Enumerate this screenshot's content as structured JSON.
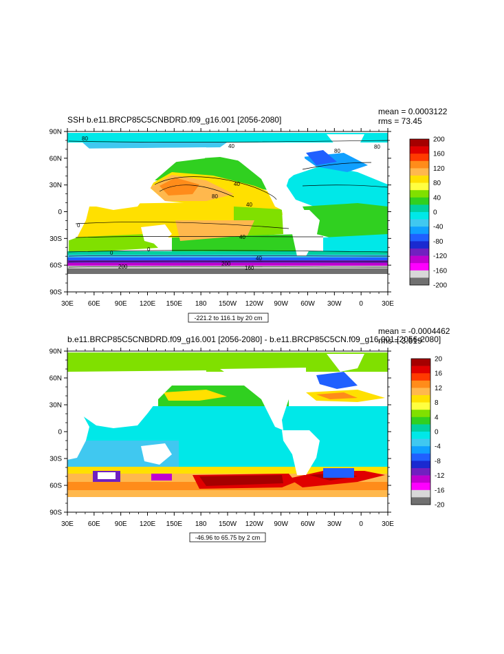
{
  "chart_data": [
    {
      "type": "heatmap",
      "title": "SSH b.e11.BRCP85C5CNBDRD.f09_g16.001 [2056-2080]",
      "stats": [
        "mean = 0.0003122",
        "rms = 73.45"
      ],
      "range_label": "-221.2 to 116.1 by 20 cm",
      "x_tick_labels": [
        "30E",
        "60E",
        "90E",
        "120E",
        "150E",
        "180",
        "150W",
        "120W",
        "90W",
        "60W",
        "30W",
        "0",
        "30E"
      ],
      "y_tick_labels": [
        "90N",
        "60N",
        "30N",
        "0",
        "30S",
        "60S",
        "90S"
      ],
      "colorbar": {
        "labels": [
          "200",
          "160",
          "120",
          "80",
          "40",
          "0",
          "-40",
          "-80",
          "-120",
          "-160",
          "-200"
        ],
        "colors": [
          "#a50000",
          "#e00000",
          "#ff3a00",
          "#ff8c1a",
          "#ffb84d",
          "#ffe000",
          "#ffff40",
          "#80e000",
          "#30d020",
          "#00d0a0",
          "#00e8e8",
          "#40c8f0",
          "#10a0ff",
          "#2060ff",
          "#1a2ad0",
          "#7020c0",
          "#c000d0",
          "#ff00ff",
          "#d8d8d8",
          "#707070"
        ]
      },
      "contour_labels": [
        "40",
        "80",
        "40",
        "40",
        "80",
        "0",
        "40",
        "0",
        "200",
        "200",
        "160",
        "40",
        "80",
        "80",
        "0"
      ],
      "grid": false
    },
    {
      "type": "heatmap",
      "title": "b.e11.BRCP85C5CNBDRD.f09_g16.001 [2056-2080] - b.e11.BRCP85C5CN.f09_g16.001 [2056-2080]",
      "stats": [
        "mean = -0.0004462",
        "rms = 3.619"
      ],
      "range_label": "-46.96 to 65.75 by 2 cm",
      "x_tick_labels": [
        "30E",
        "60E",
        "90E",
        "120E",
        "150E",
        "180",
        "150W",
        "120W",
        "90W",
        "60W",
        "30W",
        "0",
        "30E"
      ],
      "y_tick_labels": [
        "90N",
        "60N",
        "30N",
        "0",
        "30S",
        "60S",
        "90S"
      ],
      "colorbar": {
        "labels": [
          "20",
          "16",
          "12",
          "8",
          "4",
          "0",
          "-4",
          "-8",
          "-12",
          "-16",
          "-20"
        ],
        "colors": [
          "#a50000",
          "#e00000",
          "#ff3a00",
          "#ff8c1a",
          "#ffb84d",
          "#ffe000",
          "#ffff40",
          "#80e000",
          "#30d020",
          "#00d0a0",
          "#00e8e8",
          "#40c8f0",
          "#10a0ff",
          "#2060ff",
          "#1a2ad0",
          "#7020c0",
          "#c000d0",
          "#ff00ff",
          "#d8d8d8",
          "#707070"
        ]
      },
      "grid": false
    }
  ]
}
